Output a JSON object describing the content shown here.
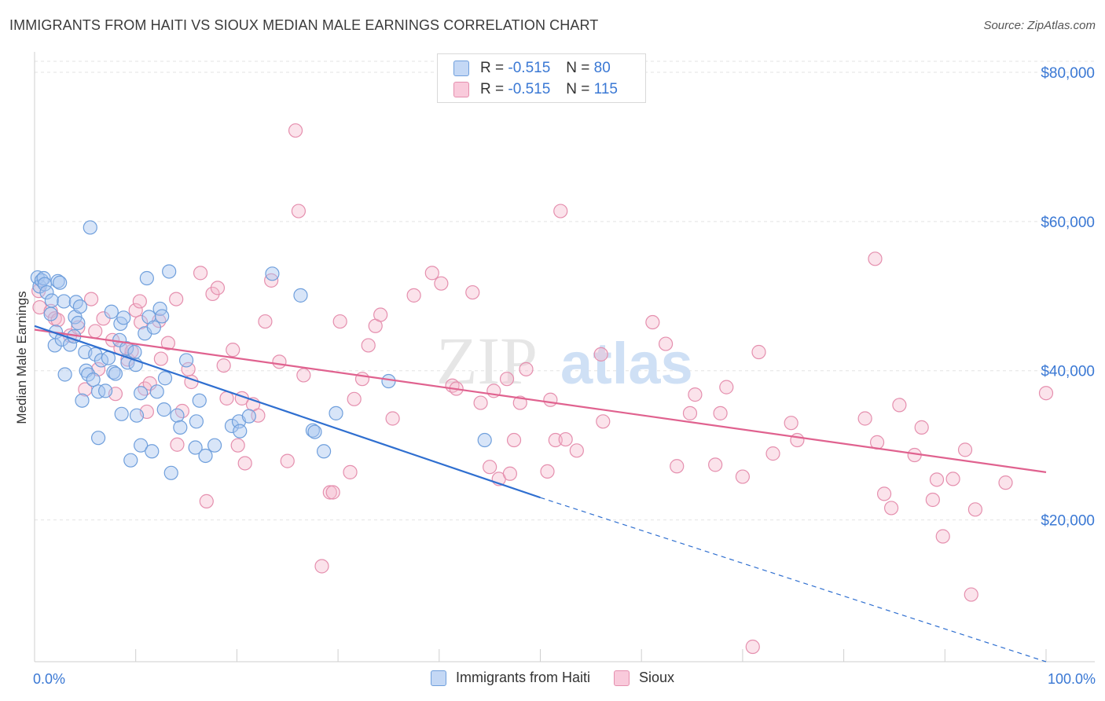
{
  "title": "IMMIGRANTS FROM HAITI VS SIOUX MEDIAN MALE EARNINGS CORRELATION CHART",
  "source": "Source: ZipAtlas.com",
  "watermark": {
    "zip": "ZIP",
    "atlas": "atlas"
  },
  "legend_top": [
    {
      "r_label": "R =",
      "r_value": "-0.515",
      "n_label": "N =",
      "n_value": "80"
    },
    {
      "r_label": "R =",
      "r_value": "-0.515",
      "n_label": "N =",
      "n_value": "115"
    }
  ],
  "legend_bottom": [
    "Immigrants from Haiti",
    "Sioux"
  ],
  "colors": {
    "blue": "#6f9fdc",
    "blue_line": "#2f6fd0",
    "pink": "#e58fae",
    "pink_line": "#e0628f",
    "tick_label": "#3a78d4"
  },
  "chart_data": {
    "type": "scatter",
    "ylabel": "Median Male Earnings",
    "xlim": [
      0,
      100
    ],
    "ylim": [
      1000,
      82000
    ],
    "x_tick_labels": [
      "0.0%",
      "100.0%"
    ],
    "y_ticks": [
      20000,
      40000,
      60000,
      80000
    ],
    "y_tick_labels": [
      "$20,000",
      "$40,000",
      "$60,000",
      "$80,000"
    ],
    "grid": true,
    "series": [
      {
        "name": "Immigrants from Haiti",
        "points": [
          [
            0.3,
            52500
          ],
          [
            0.5,
            51300
          ],
          [
            0.7,
            52100
          ],
          [
            0.9,
            52400
          ],
          [
            1.0,
            51600
          ],
          [
            1.2,
            50500
          ],
          [
            1.6,
            47600
          ],
          [
            1.7,
            49400
          ],
          [
            2.0,
            43400
          ],
          [
            2.1,
            45200
          ],
          [
            2.3,
            52000
          ],
          [
            2.5,
            51800
          ],
          [
            2.7,
            44200
          ],
          [
            2.9,
            49300
          ],
          [
            3.0,
            39500
          ],
          [
            3.5,
            43500
          ],
          [
            3.9,
            44600
          ],
          [
            4.0,
            47200
          ],
          [
            4.1,
            49200
          ],
          [
            4.3,
            46400
          ],
          [
            4.5,
            48600
          ],
          [
            4.7,
            36000
          ],
          [
            5.0,
            42500
          ],
          [
            5.1,
            40000
          ],
          [
            5.3,
            39500
          ],
          [
            5.5,
            59200
          ],
          [
            5.8,
            38800
          ],
          [
            6.0,
            42200
          ],
          [
            6.3,
            37200
          ],
          [
            6.3,
            31000
          ],
          [
            6.6,
            41400
          ],
          [
            7.0,
            37300
          ],
          [
            7.3,
            41700
          ],
          [
            7.6,
            47900
          ],
          [
            7.8,
            39800
          ],
          [
            8.0,
            39600
          ],
          [
            8.4,
            44100
          ],
          [
            8.5,
            46300
          ],
          [
            8.6,
            34200
          ],
          [
            8.8,
            47100
          ],
          [
            9.1,
            43000
          ],
          [
            9.2,
            41100
          ],
          [
            9.5,
            28000
          ],
          [
            9.9,
            42500
          ],
          [
            10.0,
            40800
          ],
          [
            10.1,
            34000
          ],
          [
            10.5,
            37000
          ],
          [
            10.5,
            30000
          ],
          [
            10.9,
            45000
          ],
          [
            11.1,
            52400
          ],
          [
            11.3,
            47200
          ],
          [
            11.6,
            29200
          ],
          [
            11.8,
            45800
          ],
          [
            12.1,
            37200
          ],
          [
            12.4,
            48300
          ],
          [
            12.6,
            47300
          ],
          [
            12.8,
            34800
          ],
          [
            12.9,
            39000
          ],
          [
            13.3,
            53300
          ],
          [
            13.5,
            26300
          ],
          [
            14.1,
            34000
          ],
          [
            14.4,
            32400
          ],
          [
            15.0,
            41400
          ],
          [
            15.9,
            29700
          ],
          [
            16.0,
            33200
          ],
          [
            16.3,
            36000
          ],
          [
            16.9,
            28600
          ],
          [
            17.8,
            30000
          ],
          [
            19.5,
            32600
          ],
          [
            20.2,
            33200
          ],
          [
            20.3,
            31900
          ],
          [
            21.2,
            33900
          ],
          [
            23.5,
            53000
          ],
          [
            26.3,
            50100
          ],
          [
            27.5,
            32000
          ],
          [
            27.7,
            31800
          ],
          [
            28.6,
            29200
          ],
          [
            29.8,
            34300
          ],
          [
            35.0,
            38600
          ],
          [
            44.5,
            30700
          ]
        ]
      },
      {
        "name": "Sioux",
        "points": [
          [
            0.4,
            50700
          ],
          [
            0.5,
            48500
          ],
          [
            1.6,
            48000
          ],
          [
            2.0,
            47000
          ],
          [
            2.3,
            46800
          ],
          [
            3.5,
            44700
          ],
          [
            4.3,
            45800
          ],
          [
            5.0,
            37500
          ],
          [
            5.6,
            49600
          ],
          [
            6.0,
            45300
          ],
          [
            6.3,
            40200
          ],
          [
            6.8,
            47000
          ],
          [
            7.7,
            44100
          ],
          [
            8.0,
            36900
          ],
          [
            8.5,
            43000
          ],
          [
            9.2,
            41500
          ],
          [
            9.6,
            42600
          ],
          [
            10.0,
            48100
          ],
          [
            10.4,
            49300
          ],
          [
            10.5,
            46500
          ],
          [
            10.9,
            37600
          ],
          [
            11.1,
            34500
          ],
          [
            11.4,
            38300
          ],
          [
            12.3,
            46700
          ],
          [
            12.5,
            41600
          ],
          [
            13.2,
            43700
          ],
          [
            14.0,
            49600
          ],
          [
            14.1,
            30100
          ],
          [
            14.6,
            34600
          ],
          [
            15.2,
            40200
          ],
          [
            15.5,
            38500
          ],
          [
            16.4,
            53100
          ],
          [
            17.0,
            22500
          ],
          [
            17.6,
            50300
          ],
          [
            18.1,
            51100
          ],
          [
            18.7,
            40700
          ],
          [
            19.0,
            36300
          ],
          [
            19.6,
            42800
          ],
          [
            20.1,
            30000
          ],
          [
            20.5,
            36300
          ],
          [
            20.8,
            27600
          ],
          [
            21.6,
            35500
          ],
          [
            22.1,
            34000
          ],
          [
            22.8,
            46600
          ],
          [
            23.4,
            52100
          ],
          [
            24.2,
            41200
          ],
          [
            25.0,
            27900
          ],
          [
            25.8,
            72200
          ],
          [
            26.1,
            61400
          ],
          [
            26.6,
            39400
          ],
          [
            28.4,
            13800
          ],
          [
            29.2,
            23700
          ],
          [
            29.5,
            23700
          ],
          [
            30.2,
            46600
          ],
          [
            31.2,
            26400
          ],
          [
            31.6,
            36200
          ],
          [
            32.4,
            38900
          ],
          [
            33.0,
            43400
          ],
          [
            33.7,
            46000
          ],
          [
            34.2,
            47500
          ],
          [
            35.4,
            33600
          ],
          [
            37.5,
            50100
          ],
          [
            39.3,
            53100
          ],
          [
            40.2,
            51700
          ],
          [
            41.3,
            38000
          ],
          [
            41.7,
            37600
          ],
          [
            43.3,
            50500
          ],
          [
            44.1,
            35700
          ],
          [
            45.0,
            27100
          ],
          [
            45.4,
            37300
          ],
          [
            45.9,
            25500
          ],
          [
            46.7,
            38900
          ],
          [
            47.0,
            26200
          ],
          [
            47.4,
            30700
          ],
          [
            48.0,
            35700
          ],
          [
            48.6,
            40200
          ],
          [
            50.7,
            26500
          ],
          [
            51.0,
            36100
          ],
          [
            51.5,
            30700
          ],
          [
            52.0,
            61400
          ],
          [
            52.5,
            30800
          ],
          [
            53.6,
            29300
          ],
          [
            56.0,
            42200
          ],
          [
            56.2,
            33200
          ],
          [
            61.1,
            46500
          ],
          [
            62.4,
            43600
          ],
          [
            63.5,
            27200
          ],
          [
            64.8,
            34300
          ],
          [
            65.3,
            36800
          ],
          [
            67.3,
            27400
          ],
          [
            67.8,
            34300
          ],
          [
            68.4,
            37800
          ],
          [
            70.0,
            25800
          ],
          [
            71.6,
            42500
          ],
          [
            73.0,
            28900
          ],
          [
            74.8,
            33000
          ],
          [
            75.4,
            30700
          ],
          [
            82.1,
            33600
          ],
          [
            83.1,
            55000
          ],
          [
            83.3,
            30400
          ],
          [
            84.0,
            23500
          ],
          [
            84.7,
            21600
          ],
          [
            85.5,
            35400
          ],
          [
            87.0,
            28700
          ],
          [
            87.7,
            32400
          ],
          [
            88.8,
            22700
          ],
          [
            89.2,
            25400
          ],
          [
            89.8,
            17800
          ],
          [
            90.8,
            25500
          ],
          [
            92.0,
            29400
          ],
          [
            92.6,
            10000
          ],
          [
            93.0,
            21400
          ],
          [
            96.0,
            25000
          ],
          [
            100.0,
            37000
          ],
          [
            71.0,
            3000
          ]
        ]
      }
    ],
    "trend_lines": [
      {
        "name": "Immigrants from Haiti",
        "solid": [
          [
            0,
            46000
          ],
          [
            50,
            23000
          ]
        ],
        "dashed": [
          [
            50,
            23000
          ],
          [
            100,
            1000
          ]
        ]
      },
      {
        "name": "Sioux",
        "solid": [
          [
            0,
            45500
          ],
          [
            100,
            26400
          ]
        ]
      }
    ]
  }
}
